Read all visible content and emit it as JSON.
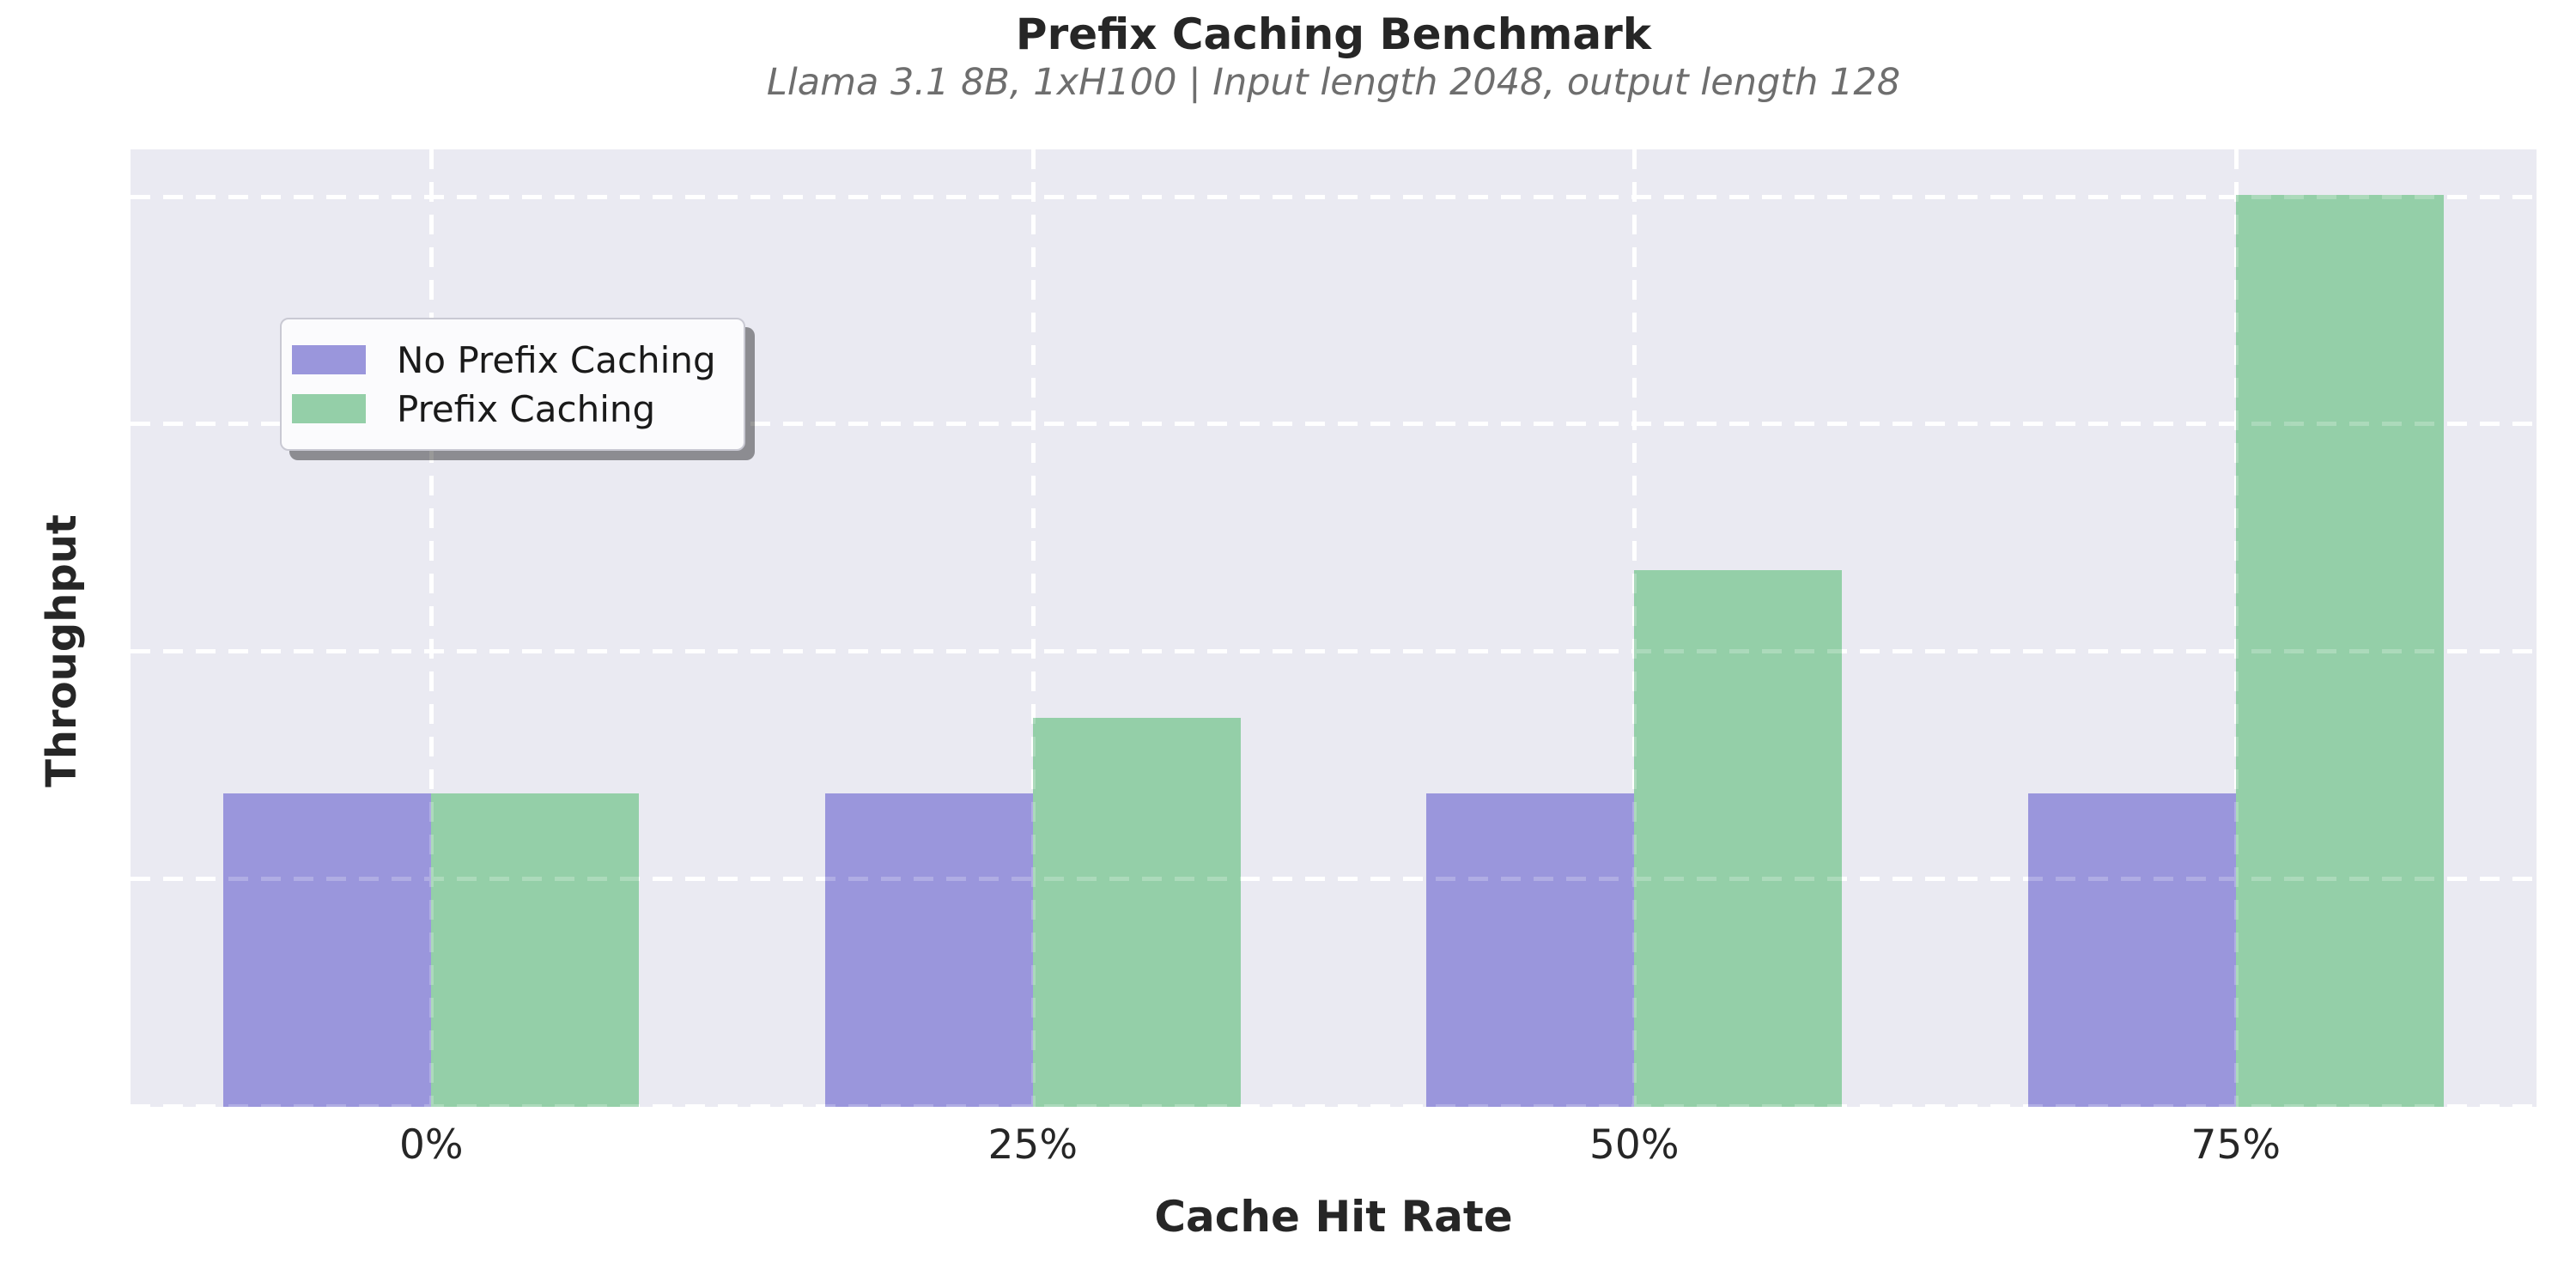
{
  "title": "Prefix Caching Benchmark",
  "subtitle": "Llama 3.1 8B, 1xH100 | Input length 2048, output length 128",
  "style": {
    "plot_background": "#eaeaf2",
    "grid_color": "#ffffff",
    "title_color": "#262626",
    "subtitle_color": "#6e6e6e",
    "tick_color": "#262626",
    "no_prefix_color": "#9a96dc",
    "prefix_color": "#94cfa8"
  },
  "chart_data": {
    "type": "bar",
    "title": "Prefix Caching Benchmark",
    "subtitle": "Llama 3.1 8B, 1xH100 | Input length 2048, output length 128",
    "xlabel": "Cache Hit Rate",
    "ylabel": "Throughput",
    "categories": [
      "0%",
      "25%",
      "50%",
      "75%"
    ],
    "series": [
      {
        "name": "No Prefix Caching",
        "color": "#9a96dc",
        "values": [
          1.38,
          1.38,
          1.38,
          1.38
        ]
      },
      {
        "name": "Prefix Caching",
        "color": "#94cfa8",
        "values": [
          1.38,
          1.71,
          2.36,
          4.01
        ]
      }
    ],
    "ylim": [
      0,
      4.21
    ],
    "yticks": [
      0,
      1,
      2,
      3,
      4
    ],
    "y_tick_labels_visible": false,
    "grid": "white dashed, horizontal and vertical, drawn under bars and faintly visible over bars",
    "legend_position": "upper left",
    "value_note": "y-axis shows no numeric labels; values are relative units estimated from unlabeled gridline spacing"
  }
}
